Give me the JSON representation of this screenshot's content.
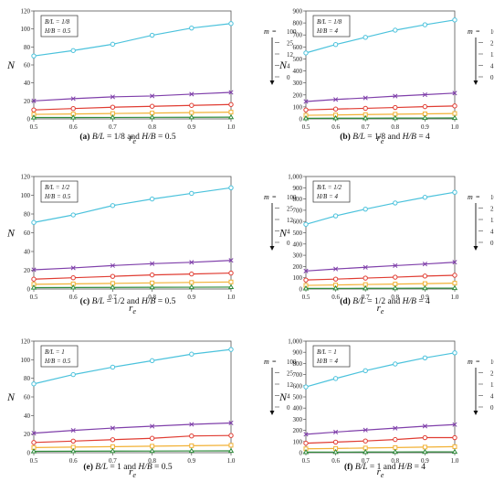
{
  "x_ticks": [
    "0.5",
    "0.6",
    "0.7",
    "0.8",
    "0.9",
    "1.0"
  ],
  "xlabel": "r",
  "xlabel_sub": "e",
  "ylabel": "N",
  "legend": {
    "m_label": "m =",
    "entries": [
      "100",
      "25",
      "12",
      "4",
      "0"
    ]
  },
  "colors": {
    "m100": "#4bc2dc",
    "m25": "#7f3faa",
    "m12": "#e03c32",
    "m4": "#f2b134",
    "m0": "#2e8b3a"
  },
  "chart_data": [
    {
      "type": "line",
      "panel": "(a)",
      "caption": [
        "(a)",
        " ",
        "B/L",
        " = 1/8 and ",
        "H/B",
        " = 0.5"
      ],
      "box": [
        "B/L = 1/8",
        "H/B = 0.5"
      ],
      "x": [
        0.5,
        0.6,
        0.7,
        0.8,
        0.9,
        1.0
      ],
      "ylim": [
        0,
        120
      ],
      "y_ticks": [
        "0",
        "20",
        "40",
        "60",
        "80",
        "100",
        "120"
      ],
      "series": [
        {
          "name": "100",
          "values": [
            70,
            76,
            83,
            93,
            101,
            106
          ]
        },
        {
          "name": "25",
          "values": [
            20,
            22.5,
            24.5,
            25.5,
            27.5,
            29.5
          ]
        },
        {
          "name": "12",
          "values": [
            10,
            11.5,
            13,
            14,
            15,
            16
          ]
        },
        {
          "name": "4",
          "values": [
            5,
            5.5,
            6,
            6.5,
            7,
            7.5
          ]
        },
        {
          "name": "0",
          "values": [
            1.5,
            1.5,
            1.6,
            1.7,
            1.8,
            1.9
          ]
        }
      ]
    },
    {
      "type": "line",
      "panel": "(b)",
      "caption": [
        "(b)",
        " ",
        "B/L",
        " = 1/8 and ",
        "H/B",
        " = 4"
      ],
      "box": [
        "B/L = 1/8",
        "H/B = 4"
      ],
      "x": [
        0.5,
        0.6,
        0.7,
        0.8,
        0.9,
        1.0
      ],
      "ylim": [
        0,
        900
      ],
      "y_ticks": [
        "0",
        "100",
        "200",
        "300",
        "400",
        "500",
        "600",
        "700",
        "800",
        "900"
      ],
      "series": [
        {
          "name": "100",
          "values": [
            550,
            620,
            680,
            740,
            785,
            825
          ]
        },
        {
          "name": "25",
          "values": [
            145,
            162,
            175,
            190,
            202,
            215
          ]
        },
        {
          "name": "12",
          "values": [
            75,
            82,
            88,
            95,
            102,
            108
          ]
        },
        {
          "name": "4",
          "values": [
            30,
            33,
            36,
            39,
            42,
            45
          ]
        },
        {
          "name": "0",
          "values": [
            5,
            5.5,
            6,
            6.5,
            7,
            7.5
          ]
        }
      ]
    },
    {
      "type": "line",
      "panel": "(c)",
      "caption": [
        "(c)",
        " ",
        "B/L",
        " = 1/2 and ",
        "H/B",
        " = 0.5"
      ],
      "box": [
        "B/L = 1/2",
        "H/B = 0.5"
      ],
      "x": [
        0.5,
        0.6,
        0.7,
        0.8,
        0.9,
        1.0
      ],
      "ylim": [
        0,
        120
      ],
      "y_ticks": [
        "0",
        "20",
        "40",
        "60",
        "80",
        "100",
        "120"
      ],
      "series": [
        {
          "name": "100",
          "values": [
            71,
            79,
            89,
            96,
            102,
            108
          ]
        },
        {
          "name": "25",
          "values": [
            20.5,
            22.5,
            25,
            27,
            28.5,
            30.5
          ]
        },
        {
          "name": "12",
          "values": [
            10.5,
            12,
            13.5,
            15,
            16,
            17
          ]
        },
        {
          "name": "4",
          "values": [
            5,
            5.5,
            6,
            6.5,
            7,
            7.5
          ]
        },
        {
          "name": "0",
          "values": [
            1.5,
            1.6,
            1.7,
            1.8,
            1.9,
            2
          ]
        }
      ]
    },
    {
      "type": "line",
      "panel": "(d)",
      "caption": [
        "(d)",
        " ",
        "B/L",
        " = 1/2 and ",
        "H/B",
        " = 4"
      ],
      "box": [
        "B/L = 1/2",
        "H/B = 4"
      ],
      "x": [
        0.5,
        0.6,
        0.7,
        0.8,
        0.9,
        1.0
      ],
      "ylim": [
        0,
        1000
      ],
      "y_ticks": [
        "0",
        "100",
        "200",
        "300",
        "400",
        "500",
        "600",
        "700",
        "800",
        "900",
        "1,000"
      ],
      "series": [
        {
          "name": "100",
          "values": [
            575,
            650,
            710,
            765,
            815,
            860
          ]
        },
        {
          "name": "25",
          "values": [
            160,
            178,
            193,
            208,
            222,
            238
          ]
        },
        {
          "name": "12",
          "values": [
            80,
            88,
            97,
            105,
            115,
            122
          ]
        },
        {
          "name": "4",
          "values": [
            32,
            36,
            40,
            44,
            48,
            52
          ]
        },
        {
          "name": "0",
          "values": [
            5,
            5.5,
            6,
            6.5,
            7,
            7.5
          ]
        }
      ]
    },
    {
      "type": "line",
      "panel": "(e)",
      "caption": [
        "(e)",
        " ",
        "B/L",
        " = 1 and ",
        "H/B",
        " = 0.5"
      ],
      "box": [
        "B/L = 1",
        "H/B = 0.5"
      ],
      "x": [
        0.5,
        0.6,
        0.7,
        0.8,
        0.9,
        1.0
      ],
      "ylim": [
        0,
        120
      ],
      "y_ticks": [
        "0",
        "20",
        "40",
        "60",
        "80",
        "100",
        "120"
      ],
      "series": [
        {
          "name": "100",
          "values": [
            74,
            84,
            92,
            99,
            106,
            111
          ]
        },
        {
          "name": "25",
          "values": [
            21,
            24,
            26.5,
            28.5,
            30.5,
            32
          ]
        },
        {
          "name": "12",
          "values": [
            11,
            12.5,
            14,
            15.5,
            18,
            18.5
          ]
        },
        {
          "name": "4",
          "values": [
            5.5,
            6,
            6.5,
            7,
            7.5,
            8
          ]
        },
        {
          "name": "0",
          "values": [
            1.5,
            1.6,
            1.7,
            1.8,
            1.9,
            2
          ]
        }
      ]
    },
    {
      "type": "line",
      "panel": "(f)",
      "caption": [
        "(f)",
        " ",
        "B/L",
        " = 1 and ",
        "H/B",
        " = 4"
      ],
      "box": [
        "B/L = 1",
        "H/B = 4"
      ],
      "x": [
        0.5,
        0.6,
        0.7,
        0.8,
        0.9,
        1.0
      ],
      "ylim": [
        0,
        1000
      ],
      "y_ticks": [
        "0",
        "100",
        "200",
        "300",
        "400",
        "500",
        "600",
        "700",
        "800",
        "900",
        "1,000"
      ],
      "series": [
        {
          "name": "100",
          "values": [
            590,
            665,
            735,
            795,
            850,
            895
          ]
        },
        {
          "name": "25",
          "values": [
            165,
            185,
            203,
            220,
            238,
            252
          ]
        },
        {
          "name": "12",
          "values": [
            85,
            95,
            105,
            118,
            135,
            135
          ]
        },
        {
          "name": "4",
          "values": [
            35,
            38,
            42,
            46,
            50,
            54
          ]
        },
        {
          "name": "0",
          "values": [
            5,
            5.5,
            6,
            6.5,
            7,
            7.5
          ]
        }
      ]
    }
  ]
}
